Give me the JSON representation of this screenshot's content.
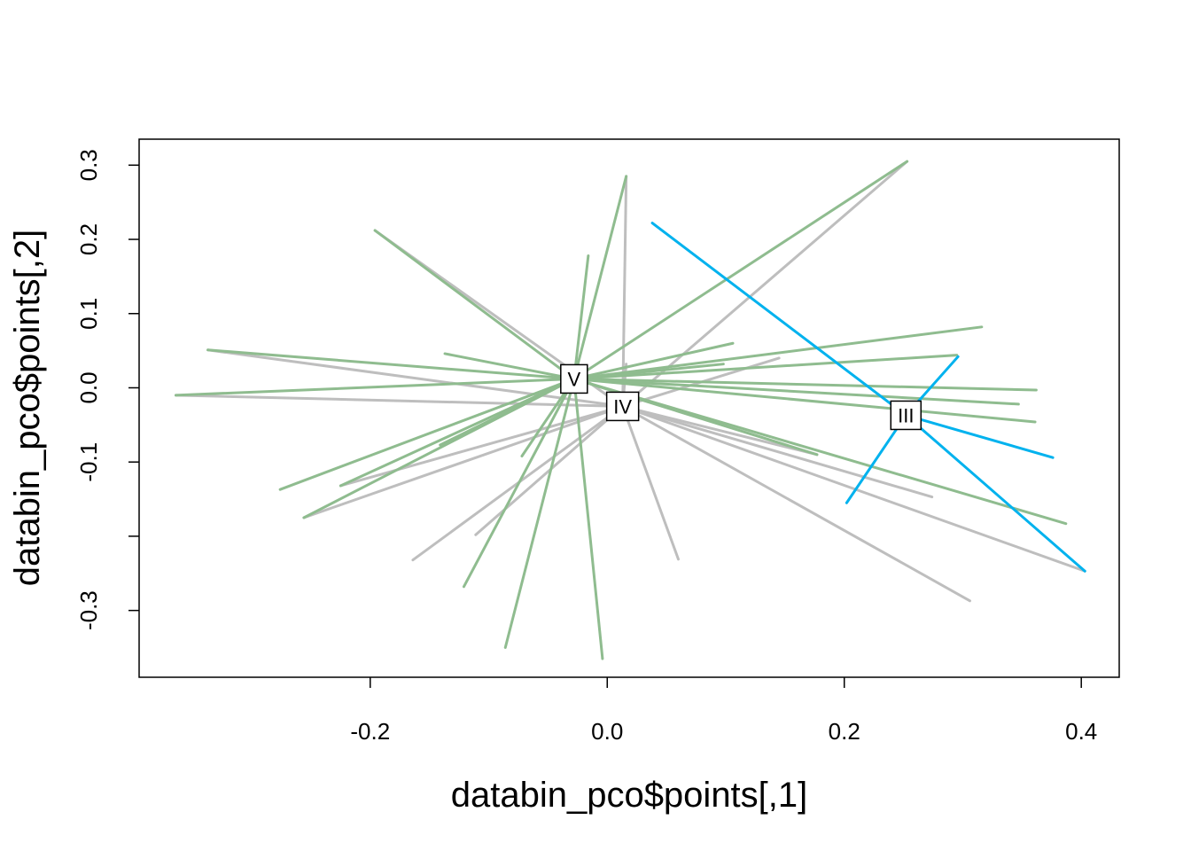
{
  "chart_data": {
    "type": "scatter",
    "title": "",
    "xlabel": "databin_pco$points[,1]",
    "ylabel": "databin_pco$points[,2]",
    "xlim": [
      -0.395,
      0.432
    ],
    "ylim": [
      -0.39,
      0.335
    ],
    "x_ticks": [
      -0.2,
      0.0,
      0.2,
      0.4
    ],
    "x_tick_labels": [
      "-0.2",
      "0.0",
      "0.2",
      "0.4"
    ],
    "y_ticks": [
      0.3,
      0.2,
      0.1,
      0.0,
      -0.1,
      -0.2,
      -0.3
    ],
    "y_tick_labels": [
      "0.3",
      "0.2",
      "0.1",
      "0.0",
      "-0.1",
      "",
      "-0.3"
    ],
    "grid": false,
    "legend": "none",
    "groups": [
      {
        "label": "V",
        "color": "#8fbc8f",
        "centroid": [
          -0.028,
          0.012
        ],
        "points": [
          [
            0.016,
            0.285
          ],
          [
            -0.016,
            0.178
          ],
          [
            -0.196,
            0.212
          ],
          [
            -0.337,
            0.051
          ],
          [
            -0.364,
            -0.01
          ],
          [
            -0.276,
            -0.137
          ],
          [
            -0.256,
            -0.175
          ],
          [
            -0.225,
            -0.132
          ],
          [
            -0.141,
            -0.077
          ],
          [
            -0.137,
            0.046
          ],
          [
            -0.072,
            -0.092
          ],
          [
            -0.121,
            -0.268
          ],
          [
            -0.086,
            -0.35
          ],
          [
            -0.004,
            -0.365
          ],
          [
            0.106,
            0.06
          ],
          [
            0.098,
            0.032
          ],
          [
            0.253,
            0.305
          ],
          [
            0.316,
            0.082
          ],
          [
            0.295,
            0.044
          ],
          [
            0.362,
            -0.003
          ],
          [
            0.347,
            -0.022
          ],
          [
            0.361,
            -0.046
          ],
          [
            0.387,
            -0.183
          ],
          [
            0.177,
            -0.09
          ]
        ]
      },
      {
        "label": "IV",
        "color": "#bebebe",
        "centroid": [
          0.013,
          -0.025
        ],
        "points": [
          [
            0.016,
            0.285
          ],
          [
            0.016,
            0.032
          ],
          [
            -0.196,
            0.212
          ],
          [
            -0.337,
            0.051
          ],
          [
            -0.364,
            -0.01
          ],
          [
            -0.256,
            -0.175
          ],
          [
            -0.225,
            -0.132
          ],
          [
            -0.164,
            -0.232
          ],
          [
            -0.111,
            -0.198
          ],
          [
            0.06,
            -0.231
          ],
          [
            0.253,
            0.305
          ],
          [
            0.145,
            0.04
          ],
          [
            0.274,
            -0.147
          ],
          [
            0.306,
            -0.287
          ],
          [
            0.403,
            -0.247
          ],
          [
            0.177,
            -0.09
          ]
        ]
      },
      {
        "label": "III",
        "color": "#00b2ee",
        "centroid": [
          0.252,
          -0.037
        ],
        "points": [
          [
            0.038,
            0.222
          ],
          [
            0.296,
            0.042
          ],
          [
            0.376,
            -0.094
          ],
          [
            0.202,
            -0.155
          ],
          [
            0.403,
            -0.247
          ]
        ]
      }
    ]
  }
}
